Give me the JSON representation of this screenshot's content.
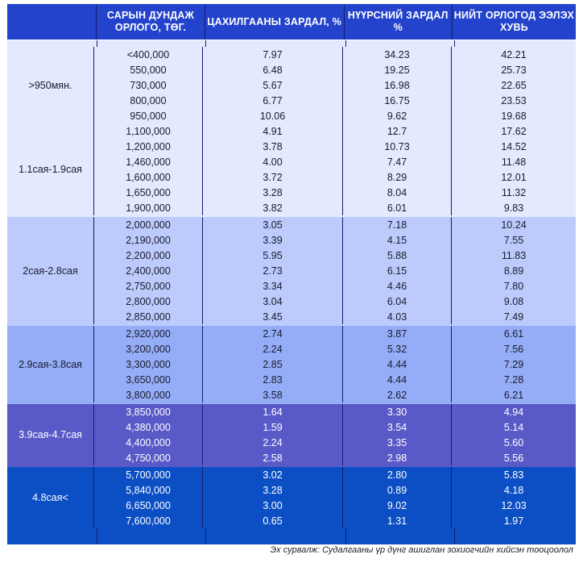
{
  "header": {
    "col0": "",
    "col1": "САРЫН ДУНДАЖ ОРЛОГО, ТӨГ.",
    "col2": "ЦАХИЛГААНЫ ЗАРДАЛ, %",
    "col3": "НҮҮРСНИЙ ЗАРДАЛ %",
    "col4": "НИЙТ ОРЛОГОД ЭЭЛЭХ ХУВЬ"
  },
  "groups": [
    {
      "label": "",
      "rows": []
    }
  ],
  "table": {
    "g0a": {
      "label": ">950мян.",
      "rows": [
        [
          "<400,000",
          "7.97",
          "34.23",
          "42.21"
        ],
        [
          "550,000",
          "6.48",
          "19.25",
          "25.73"
        ],
        [
          "730,000",
          "5.67",
          "16.98",
          "22.65"
        ],
        [
          "800,000",
          "6.77",
          "16.75",
          "23.53"
        ],
        [
          "950,000",
          "10.06",
          "9.62",
          "19.68"
        ]
      ]
    },
    "g0b": {
      "label": "1.1сая-1.9сая",
      "rows": [
        [
          "1,100,000",
          "4.91",
          "12.7",
          "17.62"
        ],
        [
          "1,200,000",
          "3.78",
          "10.73",
          "14.52"
        ],
        [
          "1,460,000",
          "4.00",
          "7.47",
          "11.48"
        ],
        [
          "1,600,000",
          "3.72",
          "8.29",
          "12.01"
        ],
        [
          "1,650,000",
          "3.28",
          "8.04",
          "11.32"
        ],
        [
          "1,900,000",
          "3.82",
          "6.01",
          "9.83"
        ]
      ]
    },
    "g1": {
      "label": "2сая-2.8сая",
      "rows": [
        [
          "2,000,000",
          "3.05",
          "7.18",
          "10.24"
        ],
        [
          "2,190,000",
          "3.39",
          "4.15",
          "7.55"
        ],
        [
          "2,200,000",
          "5.95",
          "5.88",
          "11.83"
        ],
        [
          "2,400,000",
          "2.73",
          "6.15",
          "8.89"
        ],
        [
          "2,750,000",
          "3.34",
          "4.46",
          "7.80"
        ],
        [
          "2,800,000",
          "3.04",
          "6.04",
          "9.08"
        ],
        [
          "2,850,000",
          "3.45",
          "4.03",
          "7.49"
        ]
      ]
    },
    "g2": {
      "label": "2.9сая-3.8сая",
      "rows": [
        [
          "2,920,000",
          "2.74",
          "3.87",
          "6.61"
        ],
        [
          "3,200,000",
          "2.24",
          "5.32",
          "7.56"
        ],
        [
          "3,300,000",
          "2.85",
          "4.44",
          "7.29"
        ],
        [
          "3,650,000",
          "2.83",
          "4.44",
          "7.28"
        ],
        [
          "3,800,000",
          "3.58",
          "2.62",
          "6.21"
        ]
      ]
    },
    "g3": {
      "label": "3.9сая-4.7сая",
      "rows": [
        [
          "3,850,000",
          "1.64",
          "3.30",
          "4.94"
        ],
        [
          "4,380,000",
          "1.59",
          "3.54",
          "5.14"
        ],
        [
          "4,400,000",
          "2.24",
          "3.35",
          "5.60"
        ],
        [
          "4,750,000",
          "2.58",
          "2.98",
          "5.56"
        ]
      ]
    },
    "g4": {
      "label": "4.8сая<",
      "rows": [
        [
          "5,700,000",
          "3.02",
          "2.80",
          "5.83"
        ],
        [
          "5,840,000",
          "3.28",
          "0.89",
          "4.18"
        ],
        [
          "6,650,000",
          "3.00",
          "9.02",
          "12.03"
        ],
        [
          "7,600,000",
          "0.65",
          "1.31",
          "1.97"
        ]
      ]
    }
  },
  "source": "Эх сурвалж: Судалгааны үр дүнг ашиглан зохиогчийн хийсэн тооцоолол"
}
